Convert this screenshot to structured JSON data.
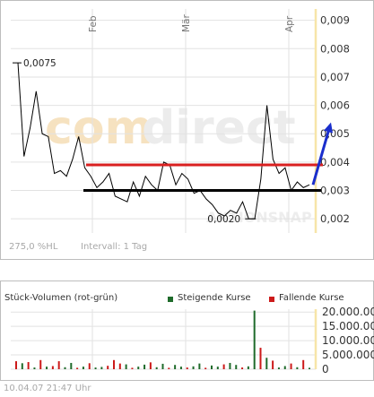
{
  "chart_data": [
    {
      "type": "line",
      "title": "",
      "x_ticks": [
        "Feb",
        "Mär",
        "Apr"
      ],
      "y_ticks": [
        "0,009",
        "0,008",
        "0,007",
        "0,006",
        "0,005",
        "0,004",
        "0,003",
        "0,002"
      ],
      "ylim": [
        0.0015,
        0.0094
      ],
      "series": [
        {
          "values": [
            0.0075,
            0.0042,
            0.0052,
            0.0065,
            0.005,
            0.0049,
            0.0036,
            0.0037,
            0.0035,
            0.0041,
            0.0049,
            0.0038,
            0.0035,
            0.0031,
            0.0033,
            0.0036,
            0.0028,
            0.0027,
            0.0026,
            0.0033,
            0.0028,
            0.0035,
            0.0032,
            0.003,
            0.004,
            0.0039,
            0.0032,
            0.0036,
            0.0034,
            0.0029,
            0.003,
            0.0027,
            0.0025,
            0.0022,
            0.0021,
            0.0023,
            0.0022,
            0.0026,
            0.002,
            0.002,
            0.0034,
            0.006,
            0.0041,
            0.0036,
            0.0038,
            0.003,
            0.0033,
            0.0031,
            0.0032
          ]
        }
      ],
      "annotations": [
        {
          "text": "0,0075",
          "value": 0.0075
        },
        {
          "text": "0,0020",
          "value": 0.002
        }
      ],
      "support_line": 0.003,
      "resistance_line": 0.0039,
      "trend_arrow": {
        "from": 0.0032,
        "to": 0.0054,
        "color": "#1a2ecc"
      },
      "grid": true,
      "watermark": {
        "text_a": "com",
        "text_b": "direct",
        "text_c": "AKTIONSNAP"
      }
    },
    {
      "type": "bar",
      "title": "Stück-Volumen (rot-grün)",
      "legend": [
        {
          "label": "Steigende Kurse",
          "color": "#1f6b2b"
        },
        {
          "label": "Fallende Kurse",
          "color": "#cc1a1a"
        }
      ],
      "y_ticks": [
        "20.000.000",
        "15.000.000",
        "10.000.000",
        "5.000.000",
        "0"
      ],
      "ylim": [
        0,
        21000000
      ],
      "bars": [
        {
          "v": 2800000,
          "c": "r"
        },
        {
          "v": 2100000,
          "c": "g"
        },
        {
          "v": 2500000,
          "c": "r"
        },
        {
          "v": 600000,
          "c": "g"
        },
        {
          "v": 3200000,
          "c": "r"
        },
        {
          "v": 900000,
          "c": "g"
        },
        {
          "v": 1100000,
          "c": "r"
        },
        {
          "v": 2800000,
          "c": "r"
        },
        {
          "v": 700000,
          "c": "g"
        },
        {
          "v": 2200000,
          "c": "g"
        },
        {
          "v": 500000,
          "c": "r"
        },
        {
          "v": 900000,
          "c": "g"
        },
        {
          "v": 2100000,
          "c": "r"
        },
        {
          "v": 600000,
          "c": "g"
        },
        {
          "v": 800000,
          "c": "g"
        },
        {
          "v": 1200000,
          "c": "r"
        },
        {
          "v": 3200000,
          "c": "r"
        },
        {
          "v": 2000000,
          "c": "r"
        },
        {
          "v": 1700000,
          "c": "g"
        },
        {
          "v": 500000,
          "c": "r"
        },
        {
          "v": 900000,
          "c": "g"
        },
        {
          "v": 1600000,
          "c": "g"
        },
        {
          "v": 2400000,
          "c": "r"
        },
        {
          "v": 700000,
          "c": "g"
        },
        {
          "v": 1900000,
          "c": "g"
        },
        {
          "v": 500000,
          "c": "r"
        },
        {
          "v": 1500000,
          "c": "g"
        },
        {
          "v": 900000,
          "c": "g"
        },
        {
          "v": 600000,
          "c": "r"
        },
        {
          "v": 1000000,
          "c": "g"
        },
        {
          "v": 2000000,
          "c": "g"
        },
        {
          "v": 500000,
          "c": "r"
        },
        {
          "v": 1300000,
          "c": "g"
        },
        {
          "v": 900000,
          "c": "g"
        },
        {
          "v": 1700000,
          "c": "r"
        },
        {
          "v": 2200000,
          "c": "g"
        },
        {
          "v": 1500000,
          "c": "g"
        },
        {
          "v": 600000,
          "c": "r"
        },
        {
          "v": 1000000,
          "c": "g"
        },
        {
          "v": 20500000,
          "c": "g"
        },
        {
          "v": 7500000,
          "c": "r"
        },
        {
          "v": 4000000,
          "c": "g"
        },
        {
          "v": 3000000,
          "c": "r"
        },
        {
          "v": 600000,
          "c": "g"
        },
        {
          "v": 1100000,
          "c": "g"
        },
        {
          "v": 2000000,
          "c": "r"
        },
        {
          "v": 700000,
          "c": "g"
        },
        {
          "v": 3200000,
          "c": "r"
        },
        {
          "v": 500000,
          "c": "g"
        }
      ]
    }
  ],
  "footer": {
    "hl_label": "275,0 %HL",
    "interval_label": "Intervall: 1 Tag",
    "timestamp": "10.04.07   21:47 Uhr"
  },
  "colors": {
    "resistance": "#d91f1f",
    "support": "#000000",
    "price_line": "#000000",
    "grid": "#e2e2e2",
    "axis_highlight": "#f7e5a8",
    "up": "#1f6b2b",
    "down": "#cc1a1a"
  }
}
